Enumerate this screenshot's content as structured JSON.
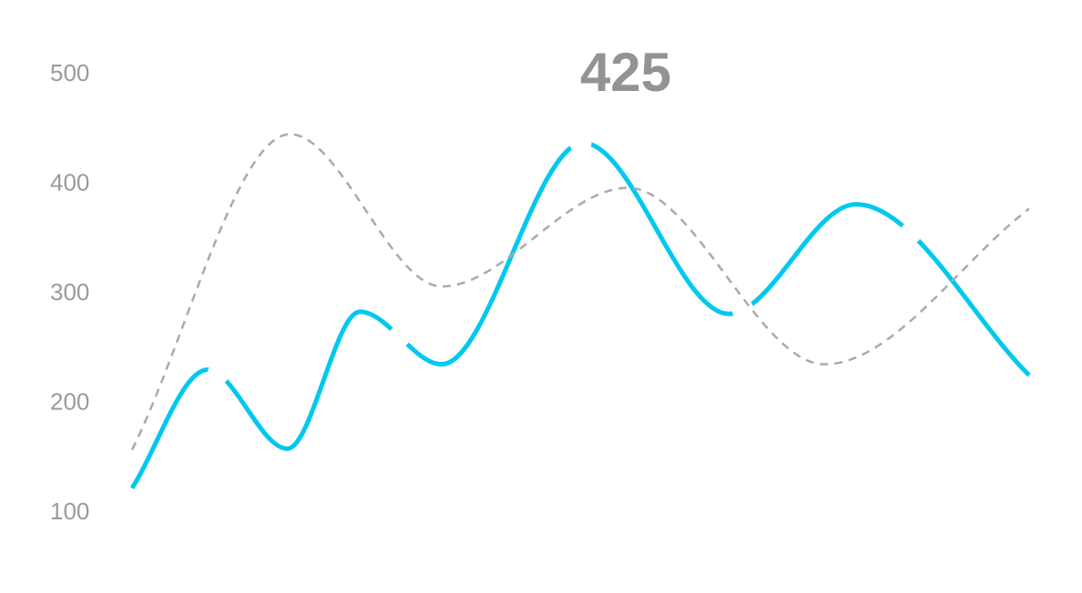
{
  "chart_data": {
    "type": "line",
    "title": "",
    "xlabel": "",
    "ylabel": "",
    "ylim": [
      100,
      500
    ],
    "yticks": [
      "100",
      "200",
      "300",
      "400",
      "500"
    ],
    "grid": false,
    "xlim": [
      0,
      10
    ],
    "highlight_label": "425",
    "series": [
      {
        "style": "solid",
        "color": "#00c8ef",
        "points": [
          [
            0,
            121
          ],
          [
            0.84,
            229
          ],
          [
            1.73,
            157
          ],
          [
            2.54,
            282
          ],
          [
            3.45,
            234
          ],
          [
            5.03,
            436
          ],
          [
            6.65,
            280
          ],
          [
            8.07,
            380
          ],
          [
            10,
            224
          ]
        ],
        "marker_x": [
          0.96,
          2.98,
          5.0,
          6.81,
          8.68
        ]
      },
      {
        "style": "dashed",
        "color": "#aaaaaa",
        "points": [
          [
            0,
            156
          ],
          [
            1.76,
            444
          ],
          [
            3.45,
            305
          ],
          [
            5.53,
            395
          ],
          [
            7.72,
            234
          ],
          [
            10,
            376
          ]
        ]
      }
    ]
  }
}
